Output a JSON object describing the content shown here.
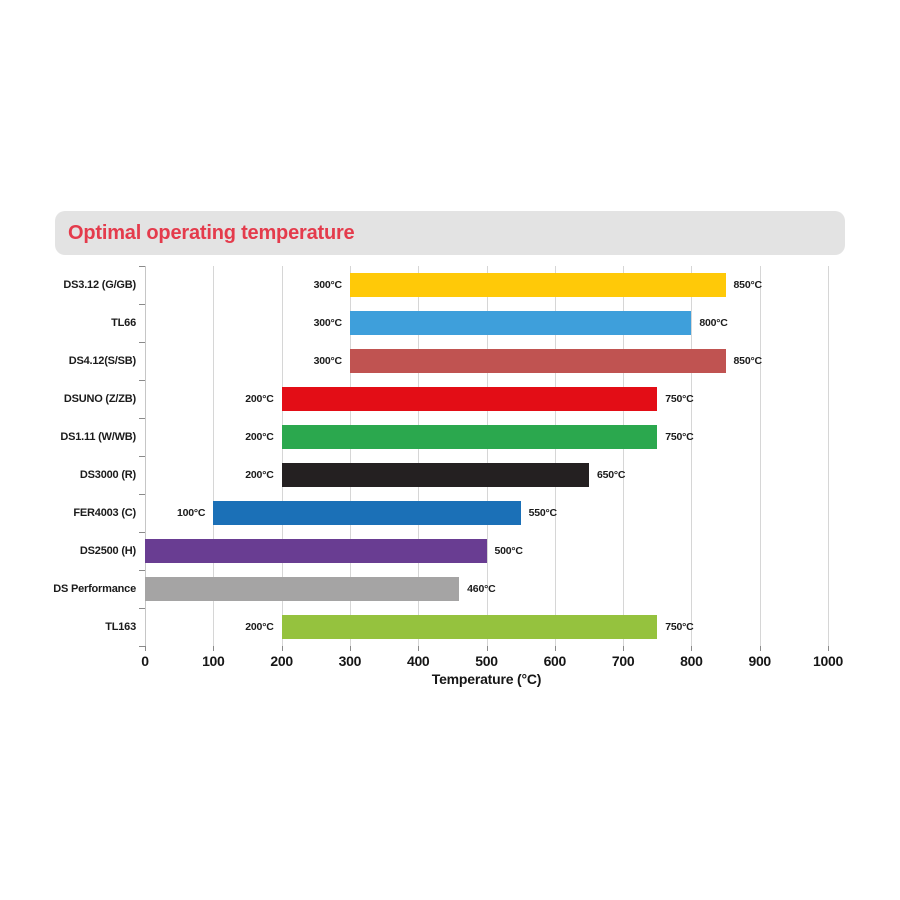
{
  "header": {
    "title": "Optimal operating temperature",
    "title_color": "#E43B4C",
    "bar_bg": "#E3E3E3"
  },
  "chart_data": {
    "type": "bar",
    "orientation": "horizontal",
    "title": "Optimal operating temperature",
    "xlabel": "Temperature (°C)",
    "xlim": [
      0,
      1000
    ],
    "xticks": [
      0,
      100,
      200,
      300,
      400,
      500,
      600,
      700,
      800,
      900,
      1000
    ],
    "grid": true,
    "unit": "°C",
    "rows": [
      {
        "label": "DS3.12 (G/GB)",
        "start": 300,
        "end": 850,
        "color": "#FFC908",
        "start_label": "300°C",
        "end_label": "850°C"
      },
      {
        "label": "TL66",
        "start": 300,
        "end": 800,
        "color": "#3E9FDB",
        "start_label": "300°C",
        "end_label": "800°C"
      },
      {
        "label": "DS4.12(S/SB)",
        "start": 300,
        "end": 850,
        "color": "#C05351",
        "start_label": "300°C",
        "end_label": "850°C"
      },
      {
        "label": "DSUNO (Z/ZB)",
        "start": 200,
        "end": 750,
        "color": "#E30D16",
        "start_label": "200°C",
        "end_label": "750°C"
      },
      {
        "label": "DS1.11 (W/WB)",
        "start": 200,
        "end": 750,
        "color": "#2BA84E",
        "start_label": "200°C",
        "end_label": "750°C"
      },
      {
        "label": "DS3000 (R)",
        "start": 200,
        "end": 650,
        "color": "#242021",
        "start_label": "200°C",
        "end_label": "650°C"
      },
      {
        "label": "FER4003 (C)",
        "start": 100,
        "end": 550,
        "color": "#1B70B7",
        "start_label": "100°C",
        "end_label": "550°C"
      },
      {
        "label": "DS2500 (H)",
        "start": 0,
        "end": 500,
        "color": "#693D92",
        "start_label": "",
        "end_label": "500°C"
      },
      {
        "label": "DS Performance",
        "start": 0,
        "end": 460,
        "color": "#A5A4A4",
        "start_label": "",
        "end_label": "460°C"
      },
      {
        "label": "TL163",
        "start": 200,
        "end": 750,
        "color": "#95C23E",
        "start_label": "200°C",
        "end_label": "750°C"
      }
    ]
  }
}
